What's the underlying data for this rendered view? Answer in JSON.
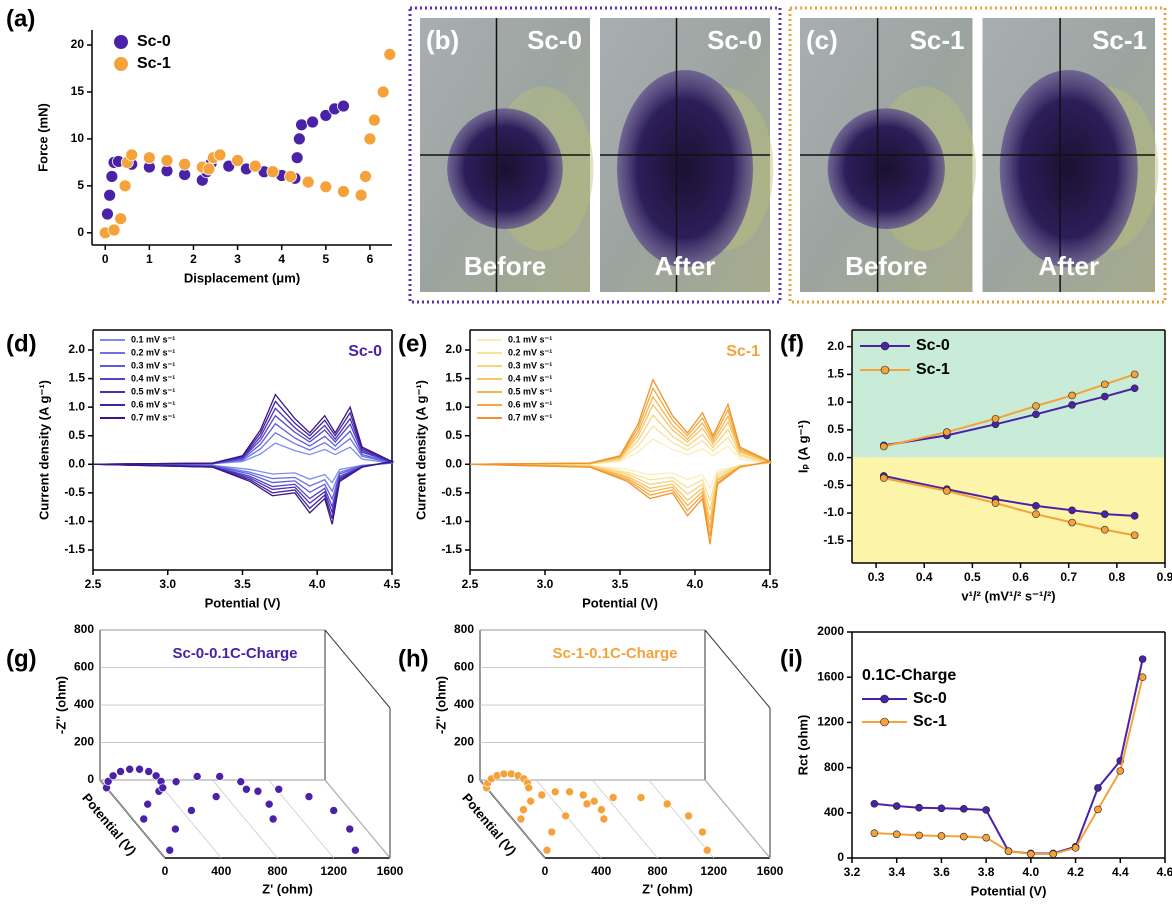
{
  "chart_data": [
    {
      "type": "scatter",
      "label": "(a)",
      "xlabel": "Displacement (μm)",
      "ylabel": "Force (mN)",
      "xlim": [
        -0.3,
        6.5
      ],
      "xticks": [
        0,
        1,
        2,
        3,
        4,
        5,
        6
      ],
      "ylim": [
        -1.3,
        21.6
      ],
      "yticks": [
        0,
        5,
        10,
        15,
        20
      ],
      "series": [
        {
          "name": "Sc-0",
          "color": "#4a22a8",
          "x": [
            0,
            0.05,
            0.1,
            0.15,
            0.2,
            0.3,
            0.6,
            1.0,
            1.4,
            1.8,
            2.2,
            2.3,
            2.4,
            2.8,
            3.2,
            3.6,
            4.0,
            4.3,
            4.35,
            4.4,
            4.45,
            4.7,
            5.0,
            5.2,
            5.4
          ],
          "values": [
            0,
            2,
            4,
            6,
            7.5,
            7.6,
            7.3,
            7.0,
            6.6,
            6.2,
            5.6,
            6.5,
            7.4,
            7.1,
            6.8,
            6.5,
            6.1,
            5.8,
            8,
            10,
            11.5,
            11.8,
            12.5,
            13.2,
            13.5
          ]
        },
        {
          "name": "Sc-1",
          "color": "#f5a23a",
          "x": [
            0,
            0.2,
            0.35,
            0.45,
            0.5,
            0.6,
            1.0,
            1.4,
            1.8,
            2.2,
            2.35,
            2.45,
            2.6,
            3.0,
            3.4,
            3.8,
            4.2,
            4.6,
            5.0,
            5.4,
            5.8,
            5.9,
            6.0,
            6.1,
            6.3,
            6.45
          ],
          "values": [
            0,
            0.3,
            1.5,
            5,
            7.5,
            8.3,
            8.0,
            7.7,
            7.3,
            7.0,
            6.8,
            8.0,
            8.3,
            7.7,
            7.1,
            6.5,
            6.0,
            5.4,
            4.9,
            4.4,
            4.0,
            6,
            10,
            12,
            15,
            19
          ]
        }
      ]
    },
    {
      "type": "line",
      "label": "(d)",
      "annotation": "Sc-0",
      "annotation_color": "#4a22a8",
      "xlabel": "Potential (V)",
      "ylabel": "Current density (A g⁻¹)",
      "xlim": [
        2.5,
        4.5
      ],
      "xticks": [
        2.5,
        {
          "value": 3,
          "label": "3.0"
        },
        3.5,
        {
          "value": 4,
          "label": "4.0"
        },
        4.5
      ],
      "ylim": [
        -1.85,
        2.35
      ],
      "yticks": [
        -1.5,
        {
          "value": -1,
          "label": "-1.0"
        },
        -0.5,
        {
          "value": 0,
          "label": "0.0"
        },
        0.5,
        {
          "value": 1,
          "label": "1.0"
        },
        1.5,
        {
          "value": 2,
          "label": "2.0"
        }
      ],
      "x": [
        2.5,
        3.3,
        3.5,
        3.62,
        3.72,
        3.85,
        3.95,
        4.05,
        4.12,
        4.22,
        4.3,
        4.5,
        4.3,
        4.15,
        4.1,
        4.05,
        3.95,
        3.85,
        3.7,
        3.55,
        3.3,
        2.5
      ],
      "series": [
        {
          "name": "0.1 mV s⁻¹",
          "color": "#7d8cf5",
          "values": [
            0,
            0.01,
            0.05,
            0.18,
            0.37,
            0.24,
            0.17,
            0.26,
            0.17,
            0.3,
            0.09,
            0.02,
            -0.02,
            -0.09,
            -0.32,
            -0.18,
            -0.26,
            -0.15,
            -0.17,
            -0.09,
            -0.02,
            0
          ]
        },
        {
          "name": "0.2 mV s⁻¹",
          "color": "#6c72ea",
          "values": [
            0,
            0.01,
            0.07,
            0.27,
            0.55,
            0.36,
            0.25,
            0.38,
            0.25,
            0.45,
            0.14,
            0.02,
            -0.02,
            -0.14,
            -0.47,
            -0.27,
            -0.38,
            -0.23,
            -0.25,
            -0.14,
            -0.02,
            0
          ]
        },
        {
          "name": "0.3 mV s⁻¹",
          "color": "#5d5bdc",
          "values": [
            0,
            0.01,
            0.09,
            0.35,
            0.71,
            0.46,
            0.32,
            0.49,
            0.32,
            0.58,
            0.17,
            0.03,
            -0.03,
            -0.17,
            -0.61,
            -0.35,
            -0.49,
            -0.29,
            -0.32,
            -0.17,
            -0.03,
            0
          ]
        },
        {
          "name": "0.4 mV s⁻¹",
          "color": "#5444c9",
          "values": [
            0,
            0.01,
            0.11,
            0.42,
            0.85,
            0.56,
            0.39,
            0.6,
            0.39,
            0.7,
            0.21,
            0.04,
            -0.04,
            -0.21,
            -0.74,
            -0.42,
            -0.6,
            -0.35,
            -0.39,
            -0.21,
            -0.04,
            0
          ]
        },
        {
          "name": "0.5 mV s⁻¹",
          "color": "#4b30b5",
          "values": [
            0,
            0.02,
            0.12,
            0.48,
            0.98,
            0.64,
            0.44,
            0.68,
            0.44,
            0.8,
            0.24,
            0.04,
            -0.04,
            -0.24,
            -0.84,
            -0.48,
            -0.68,
            -0.4,
            -0.44,
            -0.24,
            -0.04,
            0
          ]
        },
        {
          "name": "0.6 mV s⁻¹",
          "color": "#43219e",
          "values": [
            0,
            0.02,
            0.14,
            0.54,
            1.1,
            0.72,
            0.5,
            0.77,
            0.5,
            0.9,
            0.27,
            0.05,
            -0.05,
            -0.27,
            -0.95,
            -0.54,
            -0.77,
            -0.45,
            -0.5,
            -0.27,
            -0.05,
            0
          ]
        },
        {
          "name": "0.7 mV s⁻¹",
          "color": "#3a1585",
          "values": [
            0,
            0.02,
            0.15,
            0.6,
            1.22,
            0.8,
            0.55,
            0.85,
            0.55,
            1.0,
            0.3,
            0.05,
            -0.05,
            -0.3,
            -1.05,
            -0.6,
            -0.85,
            -0.5,
            -0.55,
            -0.3,
            -0.05,
            0
          ]
        }
      ]
    },
    {
      "type": "line",
      "label": "(e)",
      "annotation": "Sc-1",
      "annotation_color": "#f5a23a",
      "xlabel": "Potential (V)",
      "ylabel": "Current density (A g⁻¹)",
      "xlim": [
        2.5,
        4.5
      ],
      "xticks": [
        2.5,
        {
          "value": 3,
          "label": "3.0"
        },
        3.5,
        {
          "value": 4,
          "label": "4.0"
        },
        4.5
      ],
      "ylim": [
        -1.85,
        2.35
      ],
      "yticks": [
        -1.5,
        {
          "value": -1,
          "label": "-1.0"
        },
        -0.5,
        {
          "value": 0,
          "label": "0.0"
        },
        0.5,
        {
          "value": 1,
          "label": "1.0"
        },
        1.5,
        {
          "value": 2,
          "label": "2.0"
        }
      ],
      "x": [
        2.5,
        3.3,
        3.5,
        3.62,
        3.72,
        3.85,
        3.95,
        4.05,
        4.12,
        4.22,
        4.3,
        4.5,
        4.3,
        4.15,
        4.1,
        4.05,
        3.95,
        3.85,
        3.7,
        3.55,
        3.3,
        2.5
      ],
      "series": [
        {
          "name": "0.1 mV s⁻¹",
          "color": "#fbeeb8",
          "values": [
            0,
            0.01,
            0.05,
            0.21,
            0.44,
            0.26,
            0.17,
            0.27,
            0.15,
            0.32,
            0.09,
            0.02,
            -0.02,
            -0.11,
            -0.42,
            -0.18,
            -0.27,
            -0.15,
            -0.18,
            -0.09,
            -0.02,
            0
          ]
        },
        {
          "name": "0.2 mV s⁻¹",
          "color": "#f9e29a",
          "values": [
            0,
            0.01,
            0.07,
            0.32,
            0.67,
            0.38,
            0.25,
            0.41,
            0.23,
            0.47,
            0.14,
            0.02,
            -0.02,
            -0.16,
            -0.63,
            -0.27,
            -0.41,
            -0.23,
            -0.27,
            -0.14,
            -0.02,
            0
          ]
        },
        {
          "name": "0.3 mV s⁻¹",
          "color": "#f8d47e",
          "values": [
            0,
            0.01,
            0.09,
            0.41,
            0.86,
            0.49,
            0.32,
            0.52,
            0.29,
            0.61,
            0.17,
            0.03,
            -0.03,
            -0.2,
            -0.81,
            -0.35,
            -0.52,
            -0.29,
            -0.35,
            -0.17,
            -0.03,
            0
          ]
        },
        {
          "name": "0.4 mV s⁻¹",
          "color": "#f7c566",
          "values": [
            0,
            0.01,
            0.11,
            0.49,
            1.04,
            0.6,
            0.39,
            0.63,
            0.35,
            0.74,
            0.21,
            0.04,
            -0.04,
            -0.25,
            -0.98,
            -0.42,
            -0.63,
            -0.35,
            -0.42,
            -0.21,
            -0.04,
            0
          ]
        },
        {
          "name": "0.5 mV s⁻¹",
          "color": "#f6b650",
          "values": [
            0,
            0.02,
            0.12,
            0.56,
            1.18,
            0.68,
            0.44,
            0.72,
            0.4,
            0.84,
            0.24,
            0.04,
            -0.04,
            -0.28,
            -1.12,
            -0.48,
            -0.72,
            -0.4,
            -0.48,
            -0.24,
            -0.04,
            0
          ]
        },
        {
          "name": "0.6 mV s⁻¹",
          "color": "#f4a73e",
          "values": [
            0,
            0.02,
            0.14,
            0.63,
            1.33,
            0.77,
            0.5,
            0.81,
            0.45,
            0.95,
            0.27,
            0.05,
            -0.05,
            -0.32,
            -1.26,
            -0.54,
            -0.81,
            -0.45,
            -0.54,
            -0.27,
            -0.05,
            0
          ]
        },
        {
          "name": "0.7 mV s⁻¹",
          "color": "#ef9328",
          "values": [
            0,
            0.02,
            0.15,
            0.7,
            1.48,
            0.85,
            0.55,
            0.9,
            0.5,
            1.05,
            0.3,
            0.05,
            -0.05,
            -0.35,
            -1.4,
            -0.6,
            -0.9,
            -0.5,
            -0.6,
            -0.3,
            -0.05,
            0
          ]
        }
      ]
    },
    {
      "type": "line",
      "label": "(f)",
      "markers": true,
      "background_colors": [
        "#c9ecd9",
        "#fbf4a9"
      ],
      "xlabel": "v¹/² (mV¹/² s⁻¹/²)",
      "ylabel": "Iₚ (A g⁻¹)",
      "xlim": [
        0.25,
        0.9
      ],
      "xticks": [
        0.3,
        0.4,
        0.5,
        0.6,
        0.7,
        0.8,
        0.9
      ],
      "ylim": [
        -1.9,
        2.3
      ],
      "yticks": [
        -1.5,
        {
          "value": -1,
          "label": "-1.0"
        },
        -0.5,
        {
          "value": 0,
          "label": "0.0"
        },
        0.5,
        {
          "value": 1,
          "label": "1.0"
        },
        1.5,
        {
          "value": 2,
          "label": "2.0"
        }
      ],
      "x": [
        0.316,
        0.447,
        0.548,
        0.632,
        0.707,
        0.775,
        0.837
      ],
      "series": [
        {
          "name": "Sc-0",
          "color": "#4a22a8",
          "values": [
            0.22,
            0.4,
            0.6,
            0.78,
            0.95,
            1.1,
            1.25
          ]
        },
        {
          "name": "Sc-1",
          "color": "#f5a23a",
          "values": [
            0.2,
            0.46,
            0.7,
            0.93,
            1.12,
            1.32,
            1.5
          ]
        },
        {
          "color": "#4a22a8",
          "values": [
            -0.33,
            -0.57,
            -0.75,
            -0.87,
            -0.95,
            -1.02,
            -1.05
          ]
        },
        {
          "color": "#f5a23a",
          "values": [
            -0.37,
            -0.6,
            -0.82,
            -1.02,
            -1.17,
            -1.3,
            -1.4
          ]
        }
      ]
    },
    {
      "type": "nyquist3d",
      "label": "(g)",
      "title": "Sc-0-0.1C-Charge",
      "color": "#4a22a8",
      "xlabel": "Z' (ohm)",
      "ylabel": "-Z'' (ohm)",
      "zlabel": "Potential (V)",
      "xlim": [
        0,
        1600
      ],
      "xticks": [
        0,
        400,
        800,
        1200,
        1600
      ],
      "ylim": [
        0,
        800
      ],
      "yticks": [
        0,
        200,
        400,
        600,
        800
      ],
      "series": [
        {
          "x": [
            80,
            120,
            234,
            410,
            625,
            855,
            1070,
            1246,
            1360,
            1400
          ],
          "values": [
            0,
            113,
            212,
            286,
            325,
            325,
            286,
            212,
            113,
            0
          ]
        },
        {
          "x": [
            80,
            108,
            188,
            310,
            460,
            620,
            770,
            892,
            972,
            1000
          ],
          "values": [
            0,
            79,
            148,
            199,
            227,
            227,
            199,
            148,
            79,
            0
          ]
        },
        {
          "x": [
            0,
            12,
            47,
            100,
            165,
            235,
            300,
            353,
            388,
            400
          ],
          "values": [
            0,
            34,
            64,
            87,
            99,
            99,
            87,
            64,
            34,
            0
          ]
        }
      ]
    },
    {
      "type": "nyquist3d",
      "label": "(h)",
      "title": "Sc-1-0.1C-Charge",
      "color": "#f5a23a",
      "xlabel": "Z' (ohm)",
      "ylabel": "-Z'' (ohm)",
      "zlabel": "Potential (V)",
      "xlim": [
        0,
        1600
      ],
      "xticks": [
        0,
        400,
        800,
        1200,
        1600
      ],
      "ylim": [
        0,
        800
      ],
      "yticks": [
        0,
        200,
        400,
        600,
        800
      ],
      "series": [
        {
          "x": [
            60,
            94,
            193,
            345,
            531,
            729,
            915,
            1067,
            1166,
            1200
          ],
          "values": [
            0,
            97,
            183,
            247,
            281,
            281,
            247,
            183,
            97,
            0
          ]
        },
        {
          "x": [
            60,
            78,
            129,
            208,
            304,
            406,
            503,
            581,
            632,
            650
          ],
          "values": [
            0,
            50,
            95,
            128,
            145,
            145,
            128,
            95,
            50,
            0
          ]
        },
        {
          "x": [
            0,
            9,
            35,
            75,
            124,
            176,
            225,
            265,
            291,
            300
          ],
          "values": [
            0,
            26,
            48,
            65,
            74,
            74,
            65,
            48,
            26,
            0
          ]
        }
      ]
    },
    {
      "type": "line",
      "label": "(i)",
      "markers": true,
      "legend_title": "0.1C-Charge",
      "xlabel": "Potential (V)",
      "ylabel": "Rct (ohm)",
      "xlim": [
        3.2,
        4.6
      ],
      "xticks": [
        3.2,
        3.4,
        3.6,
        3.8,
        {
          "value": 4,
          "label": "4.0"
        },
        4.2,
        4.4,
        4.6
      ],
      "ylim": [
        0,
        2000
      ],
      "yticks": [
        0,
        400,
        800,
        1200,
        1600,
        2000
      ],
      "x": [
        3.3,
        3.4,
        3.5,
        3.6,
        3.7,
        3.8,
        3.9,
        4.0,
        4.1,
        4.2,
        4.3,
        4.4,
        4.5
      ],
      "series": [
        {
          "name": "Sc-0",
          "color": "#4a22a8",
          "values": [
            480,
            460,
            445,
            440,
            435,
            425,
            60,
            40,
            40,
            100,
            620,
            860,
            1760
          ]
        },
        {
          "name": "Sc-1",
          "color": "#f5a23a",
          "values": [
            220,
            210,
            200,
            195,
            190,
            180,
            60,
            35,
            35,
            90,
            430,
            770,
            1600
          ]
        }
      ]
    }
  ],
  "images": [
    {
      "label": "(b)",
      "border_color": "#5b2fb5",
      "frames": [
        {
          "tag": "Sc-0",
          "caption": "Before"
        },
        {
          "tag": "Sc-0",
          "caption": "After"
        }
      ]
    },
    {
      "label": "(c)",
      "border_color": "#f0a040",
      "frames": [
        {
          "tag": "Sc-1",
          "caption": "Before"
        },
        {
          "tag": "Sc-1",
          "caption": "After"
        }
      ]
    }
  ]
}
